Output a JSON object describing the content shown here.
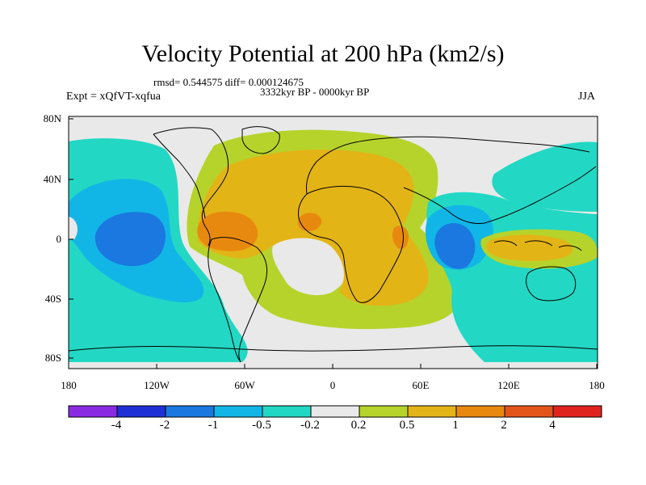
{
  "title": "Velocity Potential at 200 hPa (km2/s)",
  "stats_line": "rmsd= 0.544575 diff= 0.000124675",
  "period_line": "3332kyr BP - 0000kyr BP",
  "experiment_line": "Expt = xQfVT-xqfua",
  "season": "JJA",
  "y_ticks": [
    "80N",
    "40N",
    "0",
    "40S",
    "80S"
  ],
  "x_ticks": [
    "180",
    "120W",
    "60W",
    "0",
    "60E",
    "120E",
    "180"
  ],
  "colorbar": {
    "labels": [
      "-4",
      "-2",
      "-1",
      "-0.5",
      "-0.2",
      "0.2",
      "0.5",
      "1",
      "2",
      "4"
    ],
    "colors": [
      "#8a2be2",
      "#1f2fd6",
      "#1a78e0",
      "#12b6e6",
      "#22d8c4",
      "#e9e9e9",
      "#b6d32b",
      "#e3b416",
      "#e8890f",
      "#e3541a",
      "#e0231c"
    ]
  },
  "palette": {
    "neutral": "#e9e9e9",
    "teal": "#22d8c4",
    "cyan": "#12b6e6",
    "blue": "#1a78e0",
    "green": "#b6d32b",
    "yellow": "#e3b416",
    "orange": "#e8890f"
  }
}
